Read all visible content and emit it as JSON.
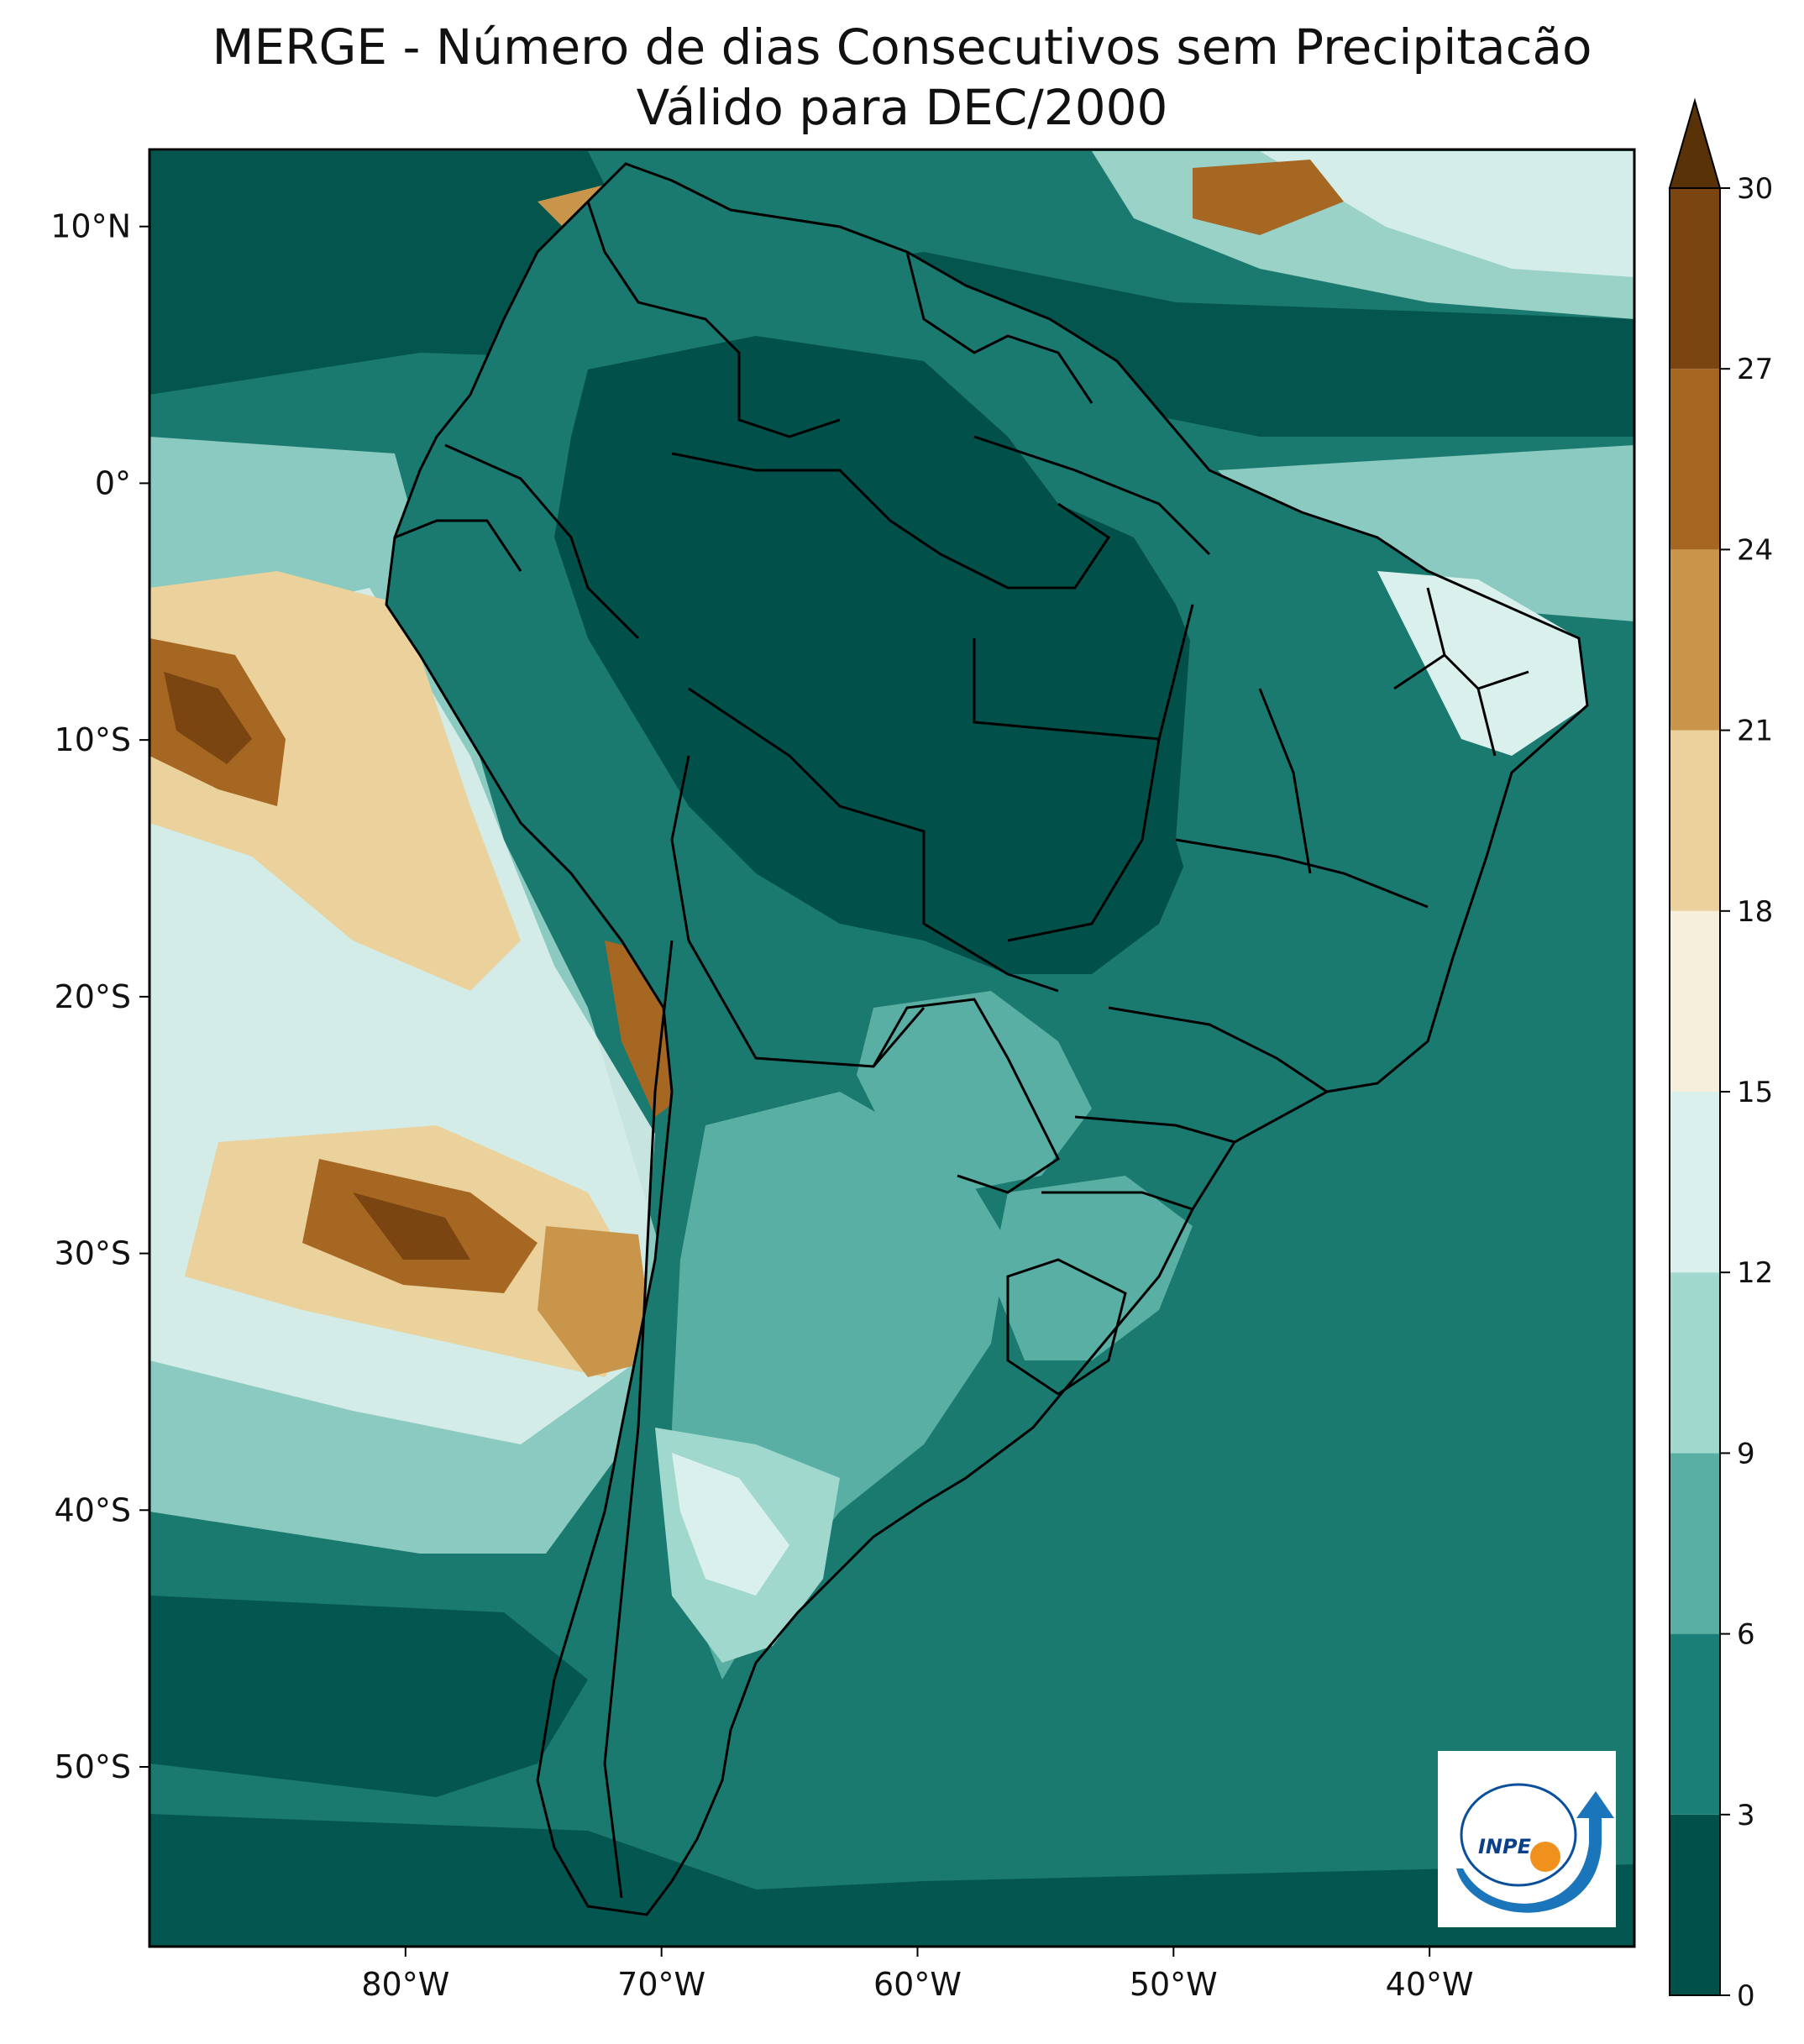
{
  "title": {
    "line1": "MERGE - Número de dias Consecutivos sem Precipitacão",
    "line2": "Válido para DEC/2000"
  },
  "map": {
    "extent": {
      "lon_min": -90,
      "lon_max": -32,
      "lat_min": -57,
      "lat_max": 13
    },
    "lat_ticks": [
      {
        "value": 10,
        "label": "10°N"
      },
      {
        "value": 0,
        "label": "0°"
      },
      {
        "value": -10,
        "label": "10°S"
      },
      {
        "value": -20,
        "label": "20°S"
      },
      {
        "value": -30,
        "label": "30°S"
      },
      {
        "value": -40,
        "label": "40°S"
      },
      {
        "value": -50,
        "label": "50°S"
      }
    ],
    "lon_ticks": [
      {
        "value": -80,
        "label": "80°W"
      },
      {
        "value": -70,
        "label": "70°W"
      },
      {
        "value": -60,
        "label": "60°W"
      },
      {
        "value": -50,
        "label": "50°W"
      },
      {
        "value": -40,
        "label": "40°W"
      }
    ],
    "background_color": "#1a7a70"
  },
  "colorbar": {
    "levels": [
      0,
      3,
      6,
      9,
      12,
      15,
      18,
      21,
      24,
      27,
      30
    ],
    "labels": [
      "0",
      "3",
      "6",
      "9",
      "12",
      "15",
      "18",
      "21",
      "24",
      "27",
      "30"
    ],
    "colors": [
      "#01514a",
      "#1a7f76",
      "#5aafa4",
      "#a0d8ce",
      "#daf0ec",
      "#f6efdc",
      "#ebd29c",
      "#c9954a",
      "#a56722",
      "#7a4510"
    ],
    "extend_color": "#5a3208"
  },
  "logo": {
    "text": "INPE"
  }
}
